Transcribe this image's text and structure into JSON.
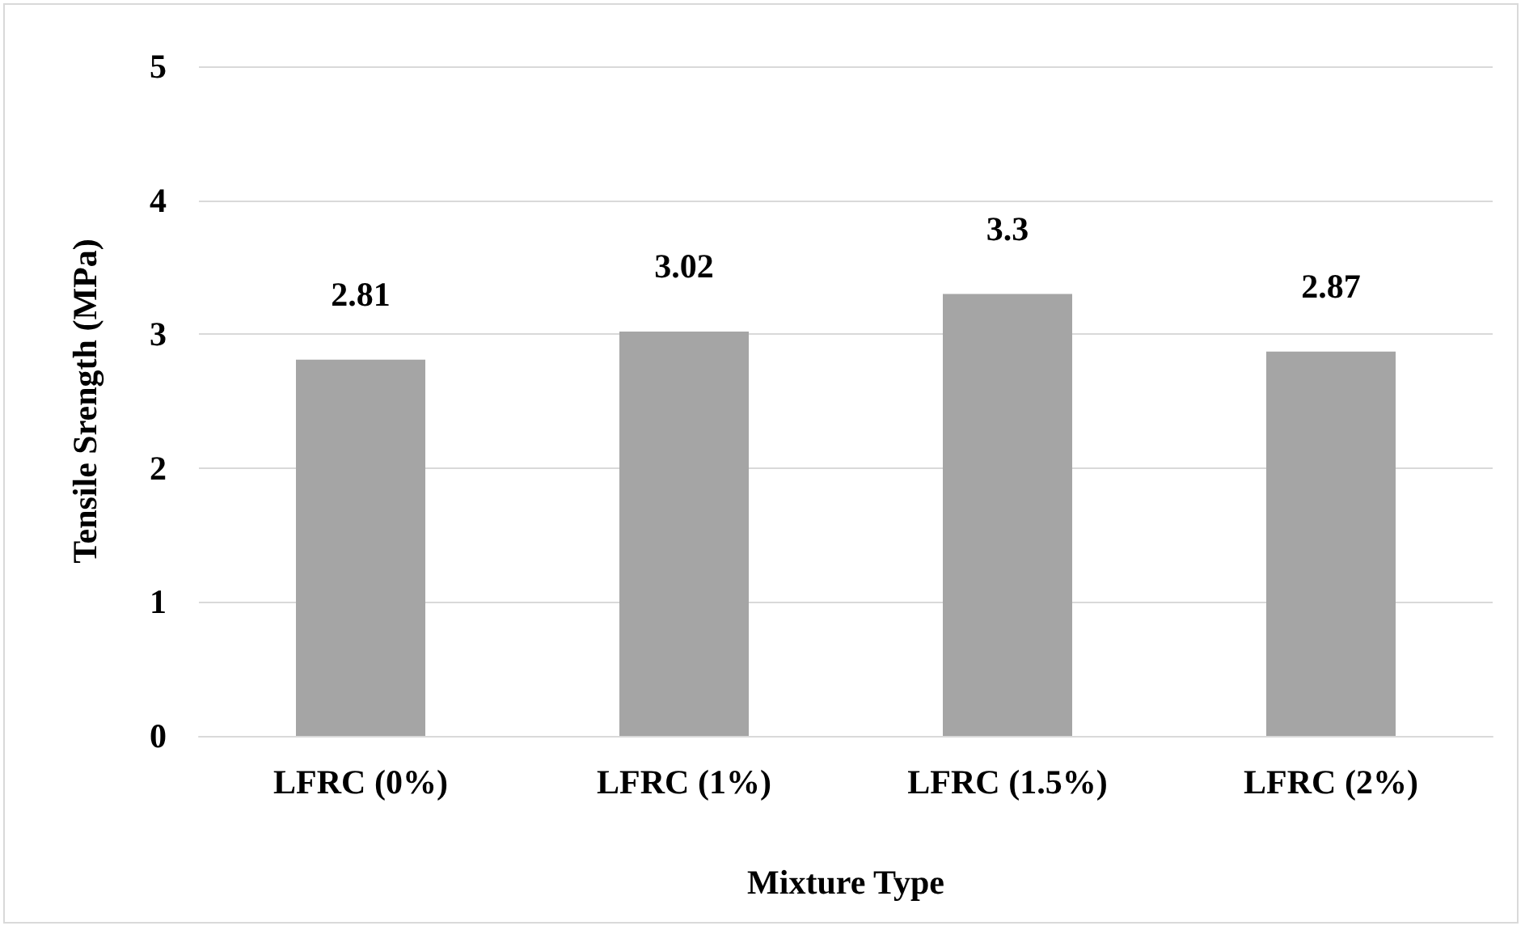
{
  "chart_data": {
    "type": "bar",
    "xlabel": "Mixture Type",
    "ylabel": "Tensile Srength (MPa)",
    "categories": [
      "LFRC (0%)",
      "LFRC (1%)",
      "LFRC (1.5%)",
      "LFRC (2%)"
    ],
    "values": [
      2.81,
      3.02,
      3.3,
      2.87
    ],
    "color": "#a5a5a5",
    "ylim": [
      0,
      5
    ],
    "yticks": [
      0,
      1,
      2,
      3,
      4,
      5
    ],
    "grid": "y",
    "data_labels": true
  }
}
